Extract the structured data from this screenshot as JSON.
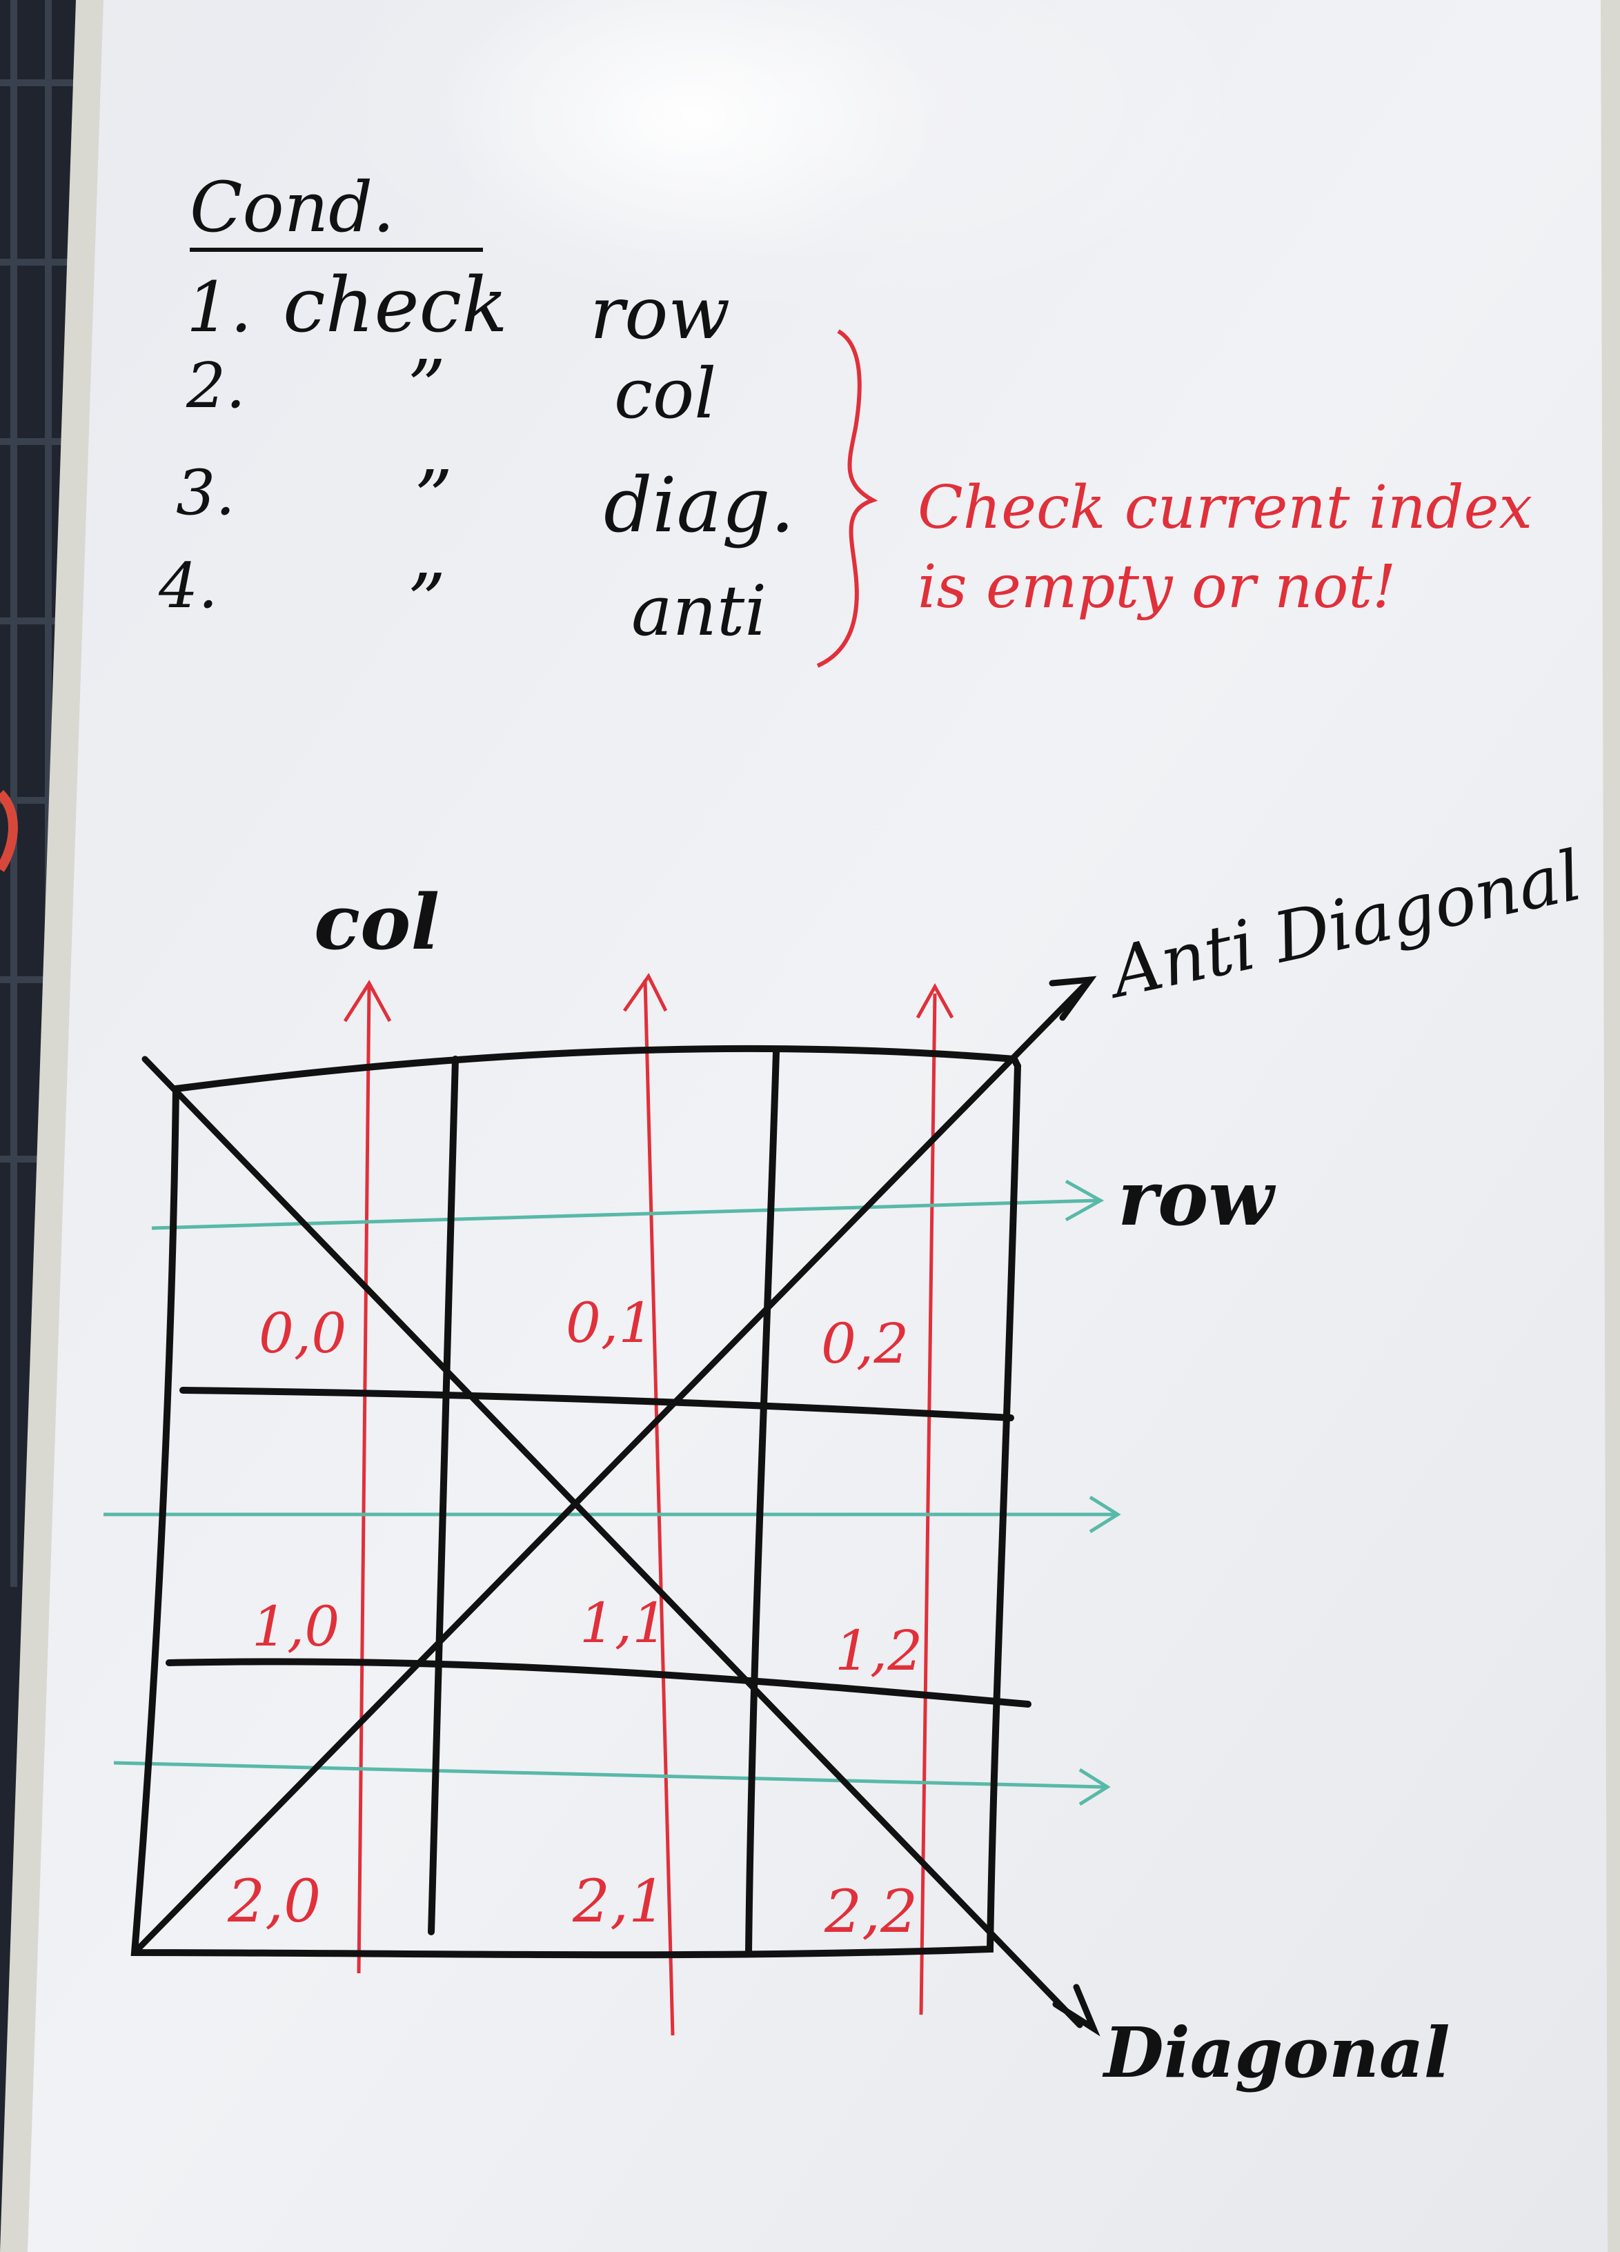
{
  "board": {
    "title": "Cond.",
    "conditions": [
      {
        "num": "1.",
        "verb": "check",
        "target": "row"
      },
      {
        "num": "2.",
        "verb": "”",
        "target": "col"
      },
      {
        "num": "3.",
        "verb": "”",
        "target": "diag."
      },
      {
        "num": "4.",
        "verb": "”",
        "target": "anti"
      }
    ],
    "note_line1": "Check current index",
    "note_line2": "is empty or not!"
  },
  "diagram": {
    "col_label": "col",
    "row_label": "row",
    "anti_diagonal_label": "Anti Diagonal",
    "diagonal_label": "Diagonal",
    "cells": [
      "0,0",
      "0,1",
      "0,2",
      "1,0",
      "1,1",
      "1,2",
      "2,0",
      "2,1",
      "2,2"
    ]
  },
  "colors": {
    "board": "#eef0f4",
    "frame": "#dcdcd6",
    "black_ink": "#111111",
    "red_ink": "#e0303a",
    "teal_ink": "#58b9a8"
  }
}
